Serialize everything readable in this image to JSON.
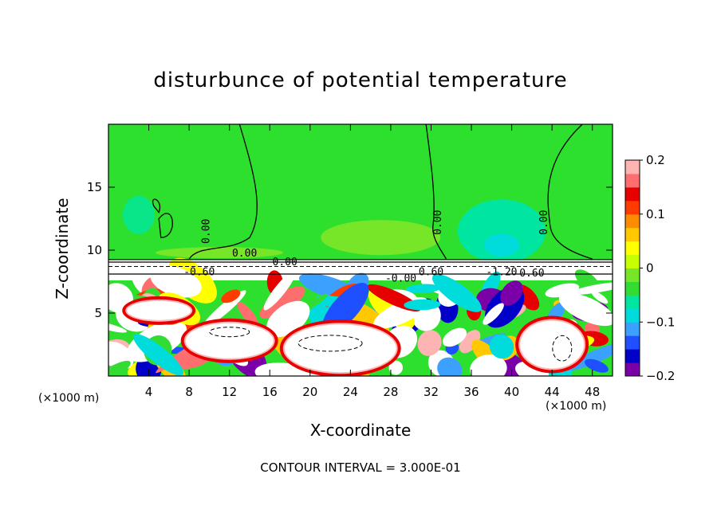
{
  "chart_data": {
    "type": "heatmap",
    "title": "disturbunce of potential temperature",
    "xlabel": "X-coordinate",
    "ylabel": "Z-coordinate",
    "x_unit": "(×1000 m)",
    "footer": "CONTOUR INTERVAL = 3.000E-01",
    "xlim": [
      0,
      50
    ],
    "ylim": [
      0,
      20
    ],
    "x_ticks": [
      4,
      8,
      12,
      16,
      20,
      24,
      28,
      32,
      36,
      40,
      44,
      48
    ],
    "y_ticks": [
      5,
      10,
      15
    ],
    "colorbar": {
      "range": [
        -0.2,
        0.2
      ],
      "tick_values": [
        -0.2,
        -0.1,
        0,
        0.1,
        0.2
      ],
      "tick_labels": [
        "−0.2",
        "−0.1",
        "0",
        "0.1",
        "0.2"
      ],
      "colors": [
        "#7a00a8",
        "#0000c8",
        "#1e50ff",
        "#3ca0ff",
        "#00dcdc",
        "#00e6a0",
        "#32dc32",
        "#78e628",
        "#c8ff00",
        "#ffff00",
        "#ffc800",
        "#ff8c00",
        "#ff3c00",
        "#e60000",
        "#ff6e6e",
        "#ffb4b4"
      ]
    },
    "contour_labels": [
      "0.00",
      "0.00",
      "0.00",
      "0.00",
      "-0.60",
      "0.60",
      "-1.20",
      "0.60",
      "-0.00",
      "0.00"
    ]
  }
}
